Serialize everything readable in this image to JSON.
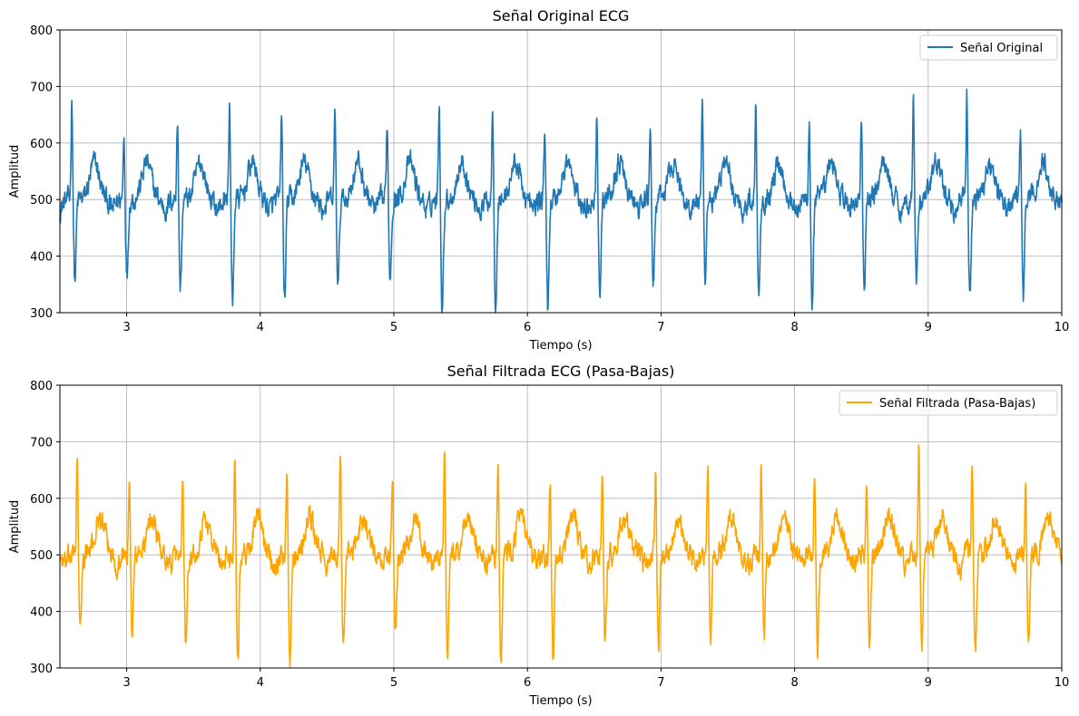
{
  "chart_data": [
    {
      "type": "line",
      "title": "Señal Original ECG",
      "xlabel": "Tiempo (s)",
      "ylabel": "Amplitud",
      "xlim": [
        2.5,
        10
      ],
      "ylim": [
        300,
        800
      ],
      "xticks": [
        3,
        4,
        5,
        6,
        7,
        8,
        9,
        10
      ],
      "yticks": [
        300,
        400,
        500,
        600,
        700,
        800
      ],
      "grid": true,
      "legend_position": "top-right",
      "series": [
        {
          "name": "Señal Original",
          "color": "#1f77b4",
          "beats": [
            {
              "t": 2.59,
              "peak": 678,
              "trough": 371
            },
            {
              "t": 2.98,
              "peak": 618,
              "trough": 381
            },
            {
              "t": 3.38,
              "peak": 641,
              "trough": 357
            },
            {
              "t": 3.77,
              "peak": 672,
              "trough": 334
            },
            {
              "t": 4.16,
              "peak": 653,
              "trough": 337
            },
            {
              "t": 4.56,
              "peak": 652,
              "trough": 357
            },
            {
              "t": 4.95,
              "peak": 637,
              "trough": 380
            },
            {
              "t": 5.34,
              "peak": 678,
              "trough": 321
            },
            {
              "t": 5.74,
              "peak": 665,
              "trough": 334
            },
            {
              "t": 6.13,
              "peak": 627,
              "trough": 326
            },
            {
              "t": 6.52,
              "peak": 646,
              "trough": 355
            },
            {
              "t": 6.92,
              "peak": 638,
              "trough": 357
            },
            {
              "t": 7.31,
              "peak": 650,
              "trough": 362
            },
            {
              "t": 7.71,
              "peak": 660,
              "trough": 356
            },
            {
              "t": 8.11,
              "peak": 638,
              "trough": 334
            },
            {
              "t": 8.5,
              "peak": 636,
              "trough": 355
            },
            {
              "t": 8.89,
              "peak": 695,
              "trough": 356
            },
            {
              "t": 9.29,
              "peak": 679,
              "trough": 342
            },
            {
              "t": 9.69,
              "peak": 622,
              "trough": 347
            }
          ]
        }
      ]
    },
    {
      "type": "line",
      "title": "Señal Filtrada ECG (Pasa-Bajas)",
      "xlabel": "Tiempo (s)",
      "ylabel": "Amplitud",
      "xlim": [
        2.5,
        10
      ],
      "ylim": [
        300,
        800
      ],
      "xticks": [
        3,
        4,
        5,
        6,
        7,
        8,
        9,
        10
      ],
      "yticks": [
        300,
        400,
        500,
        600,
        700,
        800
      ],
      "grid": true,
      "legend_position": "top-right",
      "series": [
        {
          "name": "Señal Filtrada (Pasa-Bajas)",
          "color": "#ffa500",
          "beats": [
            {
              "t": 2.63,
              "peak": 678,
              "trough": 373
            },
            {
              "t": 3.02,
              "peak": 618,
              "trough": 383
            },
            {
              "t": 3.42,
              "peak": 640,
              "trough": 357
            },
            {
              "t": 3.81,
              "peak": 671,
              "trough": 334
            },
            {
              "t": 4.2,
              "peak": 653,
              "trough": 337
            },
            {
              "t": 4.6,
              "peak": 652,
              "trough": 360
            },
            {
              "t": 4.99,
              "peak": 636,
              "trough": 380
            },
            {
              "t": 5.38,
              "peak": 678,
              "trough": 322
            },
            {
              "t": 5.78,
              "peak": 665,
              "trough": 334
            },
            {
              "t": 6.17,
              "peak": 627,
              "trough": 326
            },
            {
              "t": 6.56,
              "peak": 645,
              "trough": 356
            },
            {
              "t": 6.96,
              "peak": 637,
              "trough": 357
            },
            {
              "t": 7.35,
              "peak": 649,
              "trough": 362
            },
            {
              "t": 7.75,
              "peak": 660,
              "trough": 356
            },
            {
              "t": 8.15,
              "peak": 638,
              "trough": 334
            },
            {
              "t": 8.54,
              "peak": 636,
              "trough": 356
            },
            {
              "t": 8.93,
              "peak": 694,
              "trough": 358
            },
            {
              "t": 9.33,
              "peak": 679,
              "trough": 342
            },
            {
              "t": 9.73,
              "peak": 622,
              "trough": 348
            }
          ]
        }
      ]
    }
  ]
}
